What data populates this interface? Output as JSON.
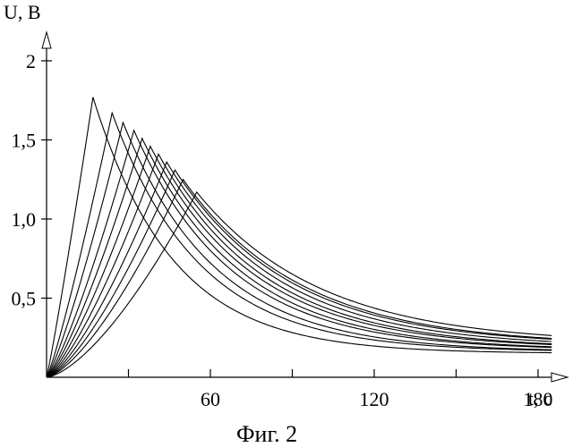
{
  "figure": {
    "caption": "Фиг. 2"
  },
  "chart_data": {
    "type": "line",
    "title": "",
    "xlabel": "t, c",
    "ylabel": "U, B",
    "xlim": [
      0,
      190
    ],
    "ylim": [
      0,
      2
    ],
    "x_ticks": [
      {
        "value": 30,
        "label": ""
      },
      {
        "value": 60,
        "label": "60"
      },
      {
        "value": 90,
        "label": ""
      },
      {
        "value": 120,
        "label": "120"
      },
      {
        "value": 150,
        "label": ""
      },
      {
        "value": 180,
        "label": "180"
      }
    ],
    "y_ticks": [
      {
        "value": 0.5,
        "label": "0,5"
      },
      {
        "value": 1.0,
        "label": "1,0"
      },
      {
        "value": 1.5,
        "label": "1,5"
      },
      {
        "value": 2.0,
        "label": "2"
      }
    ],
    "grid": false,
    "legend": "none",
    "series": [
      {
        "peak_t": 17,
        "peak_u": 1.77,
        "end_u": 0.15
      },
      {
        "peak_t": 24,
        "peak_u": 1.67,
        "end_u": 0.16
      },
      {
        "peak_t": 28,
        "peak_u": 1.61,
        "end_u": 0.16
      },
      {
        "peak_t": 32,
        "peak_u": 1.56,
        "end_u": 0.17
      },
      {
        "peak_t": 35,
        "peak_u": 1.51,
        "end_u": 0.17
      },
      {
        "peak_t": 38,
        "peak_u": 1.46,
        "end_u": 0.18
      },
      {
        "peak_t": 41,
        "peak_u": 1.41,
        "end_u": 0.18
      },
      {
        "peak_t": 44,
        "peak_u": 1.36,
        "end_u": 0.19
      },
      {
        "peak_t": 47,
        "peak_u": 1.31,
        "end_u": 0.2
      },
      {
        "peak_t": 50,
        "peak_u": 1.25,
        "end_u": 0.2
      },
      {
        "peak_t": 55,
        "peak_u": 1.17,
        "end_u": 0.21
      }
    ]
  }
}
